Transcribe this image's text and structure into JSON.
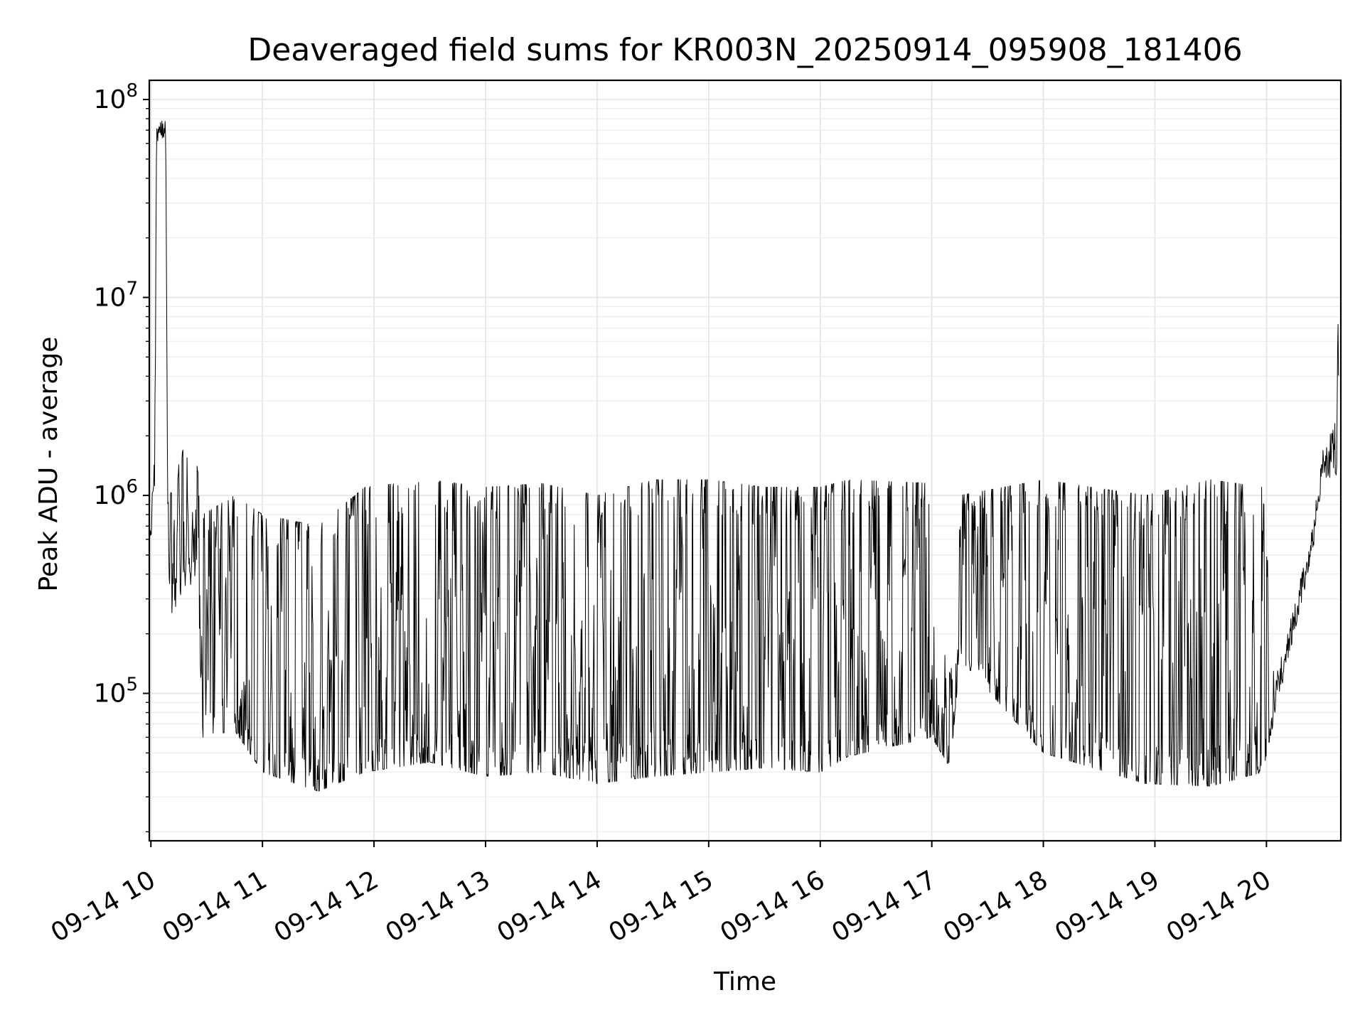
{
  "chart_data": {
    "type": "line",
    "title": "Deaveraged field sums for KR003N_20250914_095908_181406",
    "xlabel": "Time",
    "ylabel": "Peak ADU - average",
    "yscale": "log",
    "xlim": [
      "2025-09-14 09:59:08",
      "2025-09-14 20:40:00"
    ],
    "ylim": [
      18000,
      125000000
    ],
    "grid": true,
    "x_ticks": [
      {
        "t": "2025-09-14 10:00",
        "label": "09-14 10"
      },
      {
        "t": "2025-09-14 11:00",
        "label": "09-14 11"
      },
      {
        "t": "2025-09-14 12:00",
        "label": "09-14 12"
      },
      {
        "t": "2025-09-14 13:00",
        "label": "09-14 13"
      },
      {
        "t": "2025-09-14 14:00",
        "label": "09-14 14"
      },
      {
        "t": "2025-09-14 15:00",
        "label": "09-14 15"
      },
      {
        "t": "2025-09-14 16:00",
        "label": "09-14 16"
      },
      {
        "t": "2025-09-14 17:00",
        "label": "09-14 17"
      },
      {
        "t": "2025-09-14 18:00",
        "label": "09-14 18"
      },
      {
        "t": "2025-09-14 19:00",
        "label": "09-14 19"
      },
      {
        "t": "2025-09-14 20:00",
        "label": "09-14 20"
      }
    ],
    "y_ticks": [
      {
        "value": 100000,
        "base": "10",
        "exp": "5"
      },
      {
        "value": 1000000,
        "base": "10",
        "exp": "6"
      },
      {
        "value": 10000000,
        "base": "10",
        "exp": "7"
      },
      {
        "value": 100000000,
        "base": "10",
        "exp": "8"
      }
    ],
    "series": [
      {
        "color": "#000000",
        "linewidth": 1,
        "profile": [
          {
            "t": "2025-09-14 09:59",
            "low": 600000,
            "high": 2000000
          },
          {
            "t": "2025-09-14 10:02",
            "low": 700000,
            "high": 1500000
          },
          {
            "t": "2025-09-14 10:03",
            "low": 60000000,
            "high": 80000000
          },
          {
            "t": "2025-09-14 10:08",
            "low": 65000000,
            "high": 82000000
          },
          {
            "t": "2025-09-14 10:09",
            "low": 220000,
            "high": 900000
          },
          {
            "t": "2025-09-14 10:18",
            "low": 350000,
            "high": 1800000
          },
          {
            "t": "2025-09-14 10:25",
            "low": 350000,
            "high": 1400000
          },
          {
            "t": "2025-09-14 10:28",
            "low": 60000,
            "high": 800000
          },
          {
            "t": "2025-09-14 10:45",
            "low": 65000,
            "high": 1000000
          },
          {
            "t": "2025-09-14 11:00",
            "low": 40000,
            "high": 800000
          },
          {
            "t": "2025-09-14 11:30",
            "low": 32000,
            "high": 700000
          },
          {
            "t": "2025-09-14 11:55",
            "low": 40000,
            "high": 1100000
          },
          {
            "t": "2025-09-14 12:30",
            "low": 45000,
            "high": 1200000
          },
          {
            "t": "2025-09-14 13:00",
            "low": 38000,
            "high": 1100000
          },
          {
            "t": "2025-09-14 13:30",
            "low": 40000,
            "high": 1150000
          },
          {
            "t": "2025-09-14 14:00",
            "low": 35000,
            "high": 1000000
          },
          {
            "t": "2025-09-14 14:30",
            "low": 38000,
            "high": 1200000
          },
          {
            "t": "2025-09-14 15:00",
            "low": 40000,
            "high": 1200000
          },
          {
            "t": "2025-09-14 15:30",
            "low": 42000,
            "high": 1100000
          },
          {
            "t": "2025-09-14 16:00",
            "low": 40000,
            "high": 1100000
          },
          {
            "t": "2025-09-14 16:15",
            "low": 48000,
            "high": 1200000
          },
          {
            "t": "2025-09-14 17:00",
            "low": 60000,
            "high": 1150000
          },
          {
            "t": "2025-09-14 17:10",
            "low": 42000,
            "high": 120000
          },
          {
            "t": "2025-09-14 17:15",
            "low": 150000,
            "high": 1000000
          },
          {
            "t": "2025-09-14 18:00",
            "low": 50000,
            "high": 1200000
          },
          {
            "t": "2025-09-14 18:55",
            "low": 35000,
            "high": 1000000
          },
          {
            "t": "2025-09-14 19:30",
            "low": 34000,
            "high": 1200000
          },
          {
            "t": "2025-09-14 19:58",
            "low": 40000,
            "high": 1100000
          },
          {
            "t": "2025-09-14 20:05",
            "low": 80000,
            "high": 120000
          },
          {
            "t": "2025-09-14 20:15",
            "low": 200000,
            "high": 280000
          },
          {
            "t": "2025-09-14 20:25",
            "low": 500000,
            "high": 700000
          },
          {
            "t": "2025-09-14 20:30",
            "low": 1200000,
            "high": 1700000
          },
          {
            "t": "2025-09-14 20:37",
            "low": 1200000,
            "high": 2500000
          },
          {
            "t": "2025-09-14 20:39",
            "low": 1300000,
            "high": 11000000
          }
        ]
      }
    ]
  }
}
